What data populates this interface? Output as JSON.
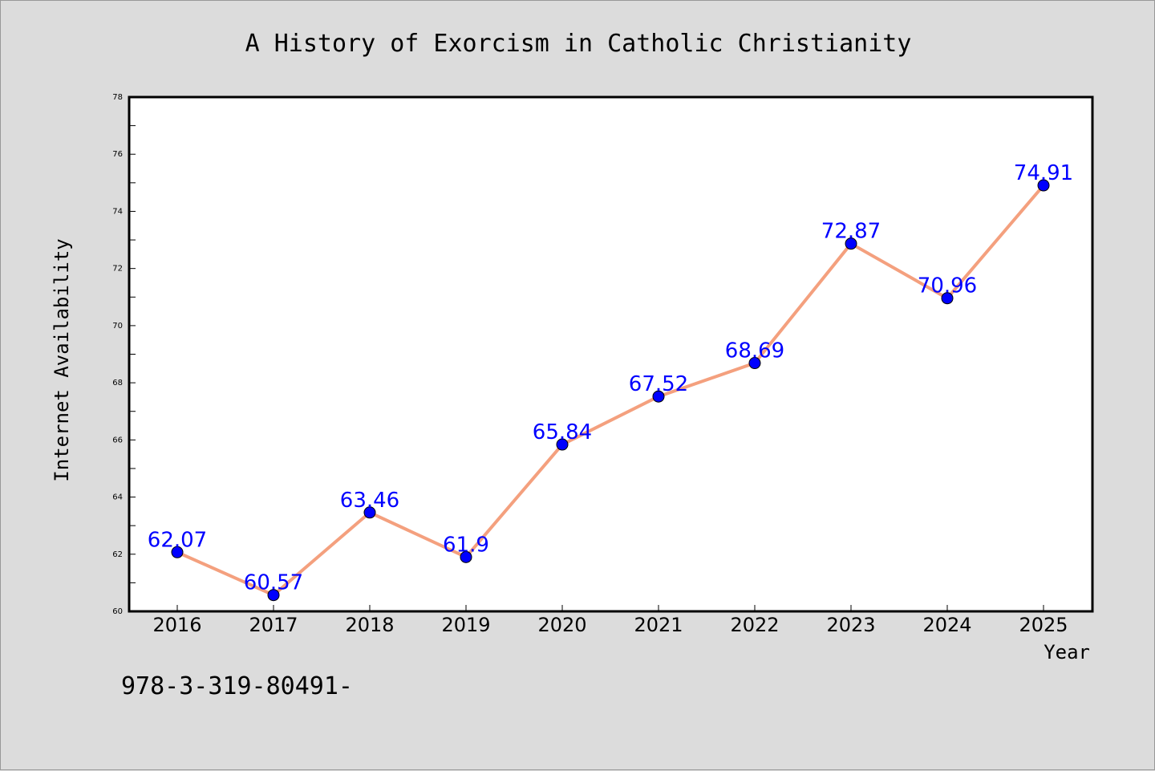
{
  "colors": {
    "background": "#dcdcdc",
    "plot_background": "#ffffff",
    "line": "#f4a07e",
    "marker": "#0000ff",
    "data_label": "#0000ff",
    "axis": "#000000"
  },
  "footnote": "978-3-319-80491-",
  "chart_data": {
    "type": "line",
    "title": "A History of Exorcism in Catholic Christianity",
    "xlabel": "Year",
    "ylabel": "Internet Availability",
    "categories": [
      "2016",
      "2017",
      "2018",
      "2019",
      "2020",
      "2021",
      "2022",
      "2023",
      "2024",
      "2025"
    ],
    "series": [
      {
        "values": [
          62.07,
          60.57,
          63.46,
          61.9,
          65.84,
          67.52,
          68.69,
          72.87,
          70.96,
          74.91
        ],
        "data_labels": [
          "62.07",
          "60.57",
          "63.46",
          "61.9",
          "65.84",
          "67.52",
          "68.69",
          "72.87",
          "70.96",
          "74.91"
        ]
      }
    ],
    "ylim": [
      60,
      78
    ],
    "yticks": [
      "60",
      "62",
      "64",
      "66",
      "68",
      "70",
      "72",
      "74",
      "76",
      "78"
    ],
    "grid": false,
    "legend": "none"
  }
}
